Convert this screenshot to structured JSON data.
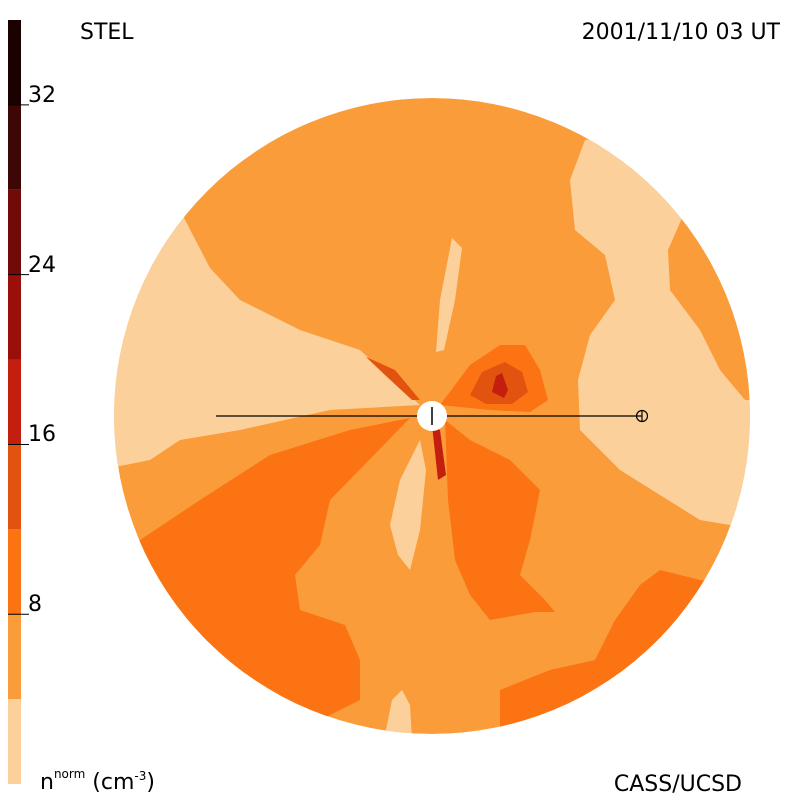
{
  "header": {
    "left_title": "STEL",
    "timestamp": "2001/11/10 03 UT"
  },
  "footer": {
    "credit": "CASS/UCSD",
    "units_base": "n",
    "units_sup": "norm",
    "units_paren_open": " (cm",
    "units_exp": "-3",
    "units_paren_close": ")"
  },
  "colors": {
    "level_0": "#fcd09b",
    "level_1": "#fb9c3a",
    "level_2": "#fb7312",
    "level_3": "#e2530f",
    "level_4": "#c41e0e",
    "level_5": "#9b0f0b",
    "level_6": "#700b08",
    "level_7": "#3e0604",
    "level_8": "#1b0201"
  },
  "chart_data": {
    "type": "heatmap",
    "colorbar": {
      "min": 0,
      "max": 36,
      "step": 4,
      "ticks": [
        8,
        16,
        24,
        32
      ],
      "tick_labels": [
        "8",
        "16",
        "24",
        "32"
      ]
    },
    "markers": [
      "sun-center",
      "earth-symbol"
    ]
  }
}
